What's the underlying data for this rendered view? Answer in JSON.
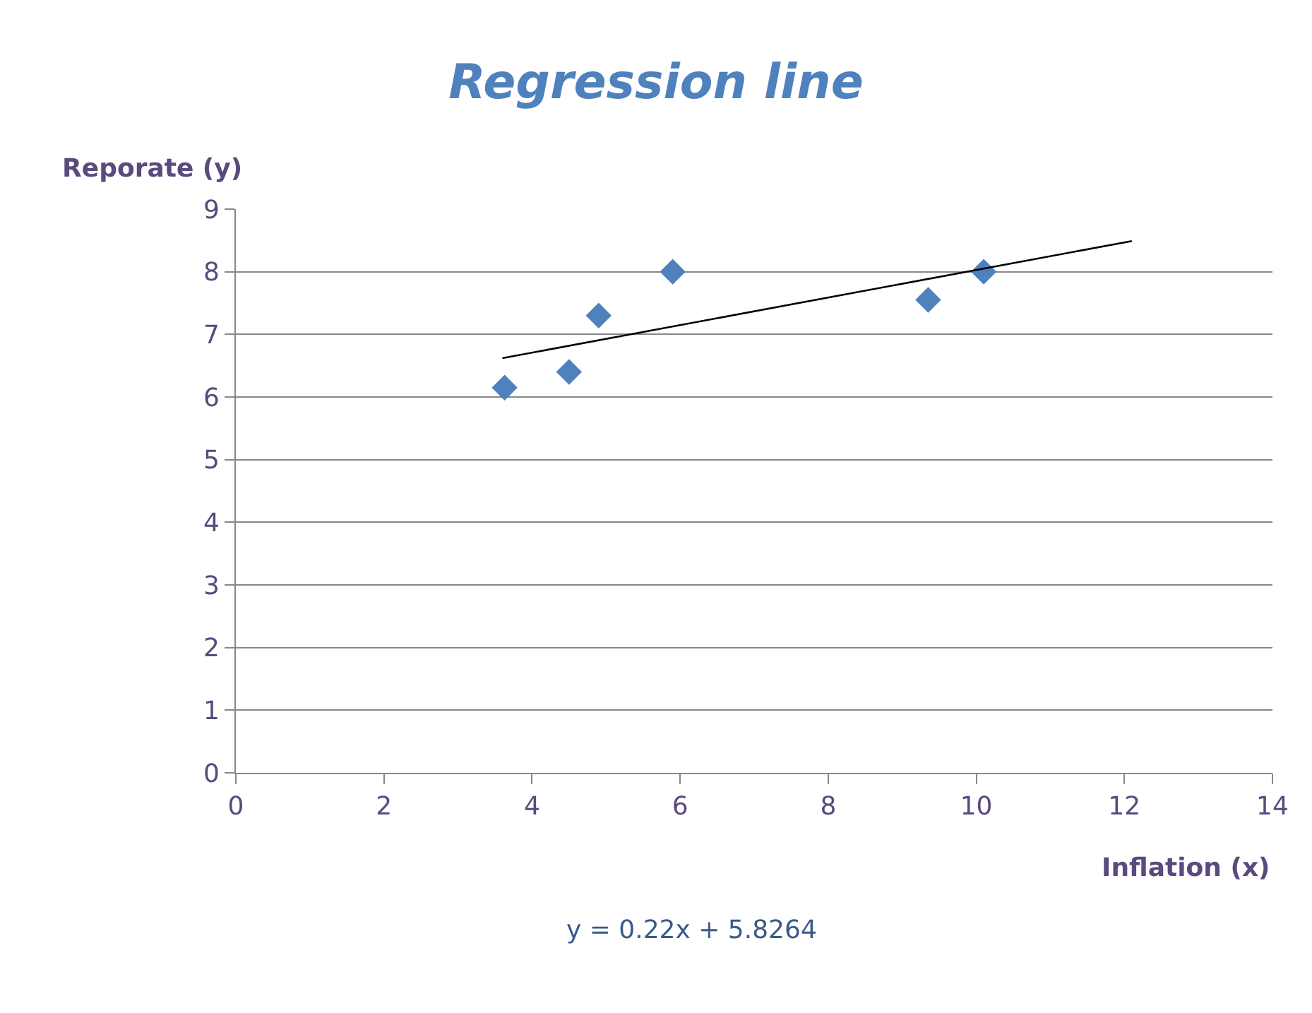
{
  "chart_data": {
    "type": "scatter",
    "title": "Regression line",
    "xlabel": "Inflation (x)",
    "ylabel": "Reporate (y)",
    "annotations": [
      "y = 0.22x + 5.8264"
    ],
    "series": [
      {
        "color": "#4f81bd",
        "marker": "diamond",
        "x": [
          3.63,
          4.5,
          4.9,
          5.9,
          9.35,
          10.1
        ],
        "values": [
          6.15,
          6.4,
          7.3,
          8.0,
          7.55,
          8.0
        ]
      },
      {
        "type": "line",
        "color": "#000000",
        "line_style": "solid",
        "x": [
          3.6,
          12.1
        ],
        "values": [
          6.62,
          8.49
        ]
      }
    ],
    "xlim": [
      0,
      14
    ],
    "xticks": [
      0,
      2,
      4,
      6,
      8,
      10,
      12,
      14
    ],
    "ylim": [
      0,
      9
    ],
    "yticks": [
      0,
      1,
      2,
      3,
      4,
      5,
      6,
      7,
      8,
      9
    ],
    "grid": "y",
    "legend": false
  }
}
